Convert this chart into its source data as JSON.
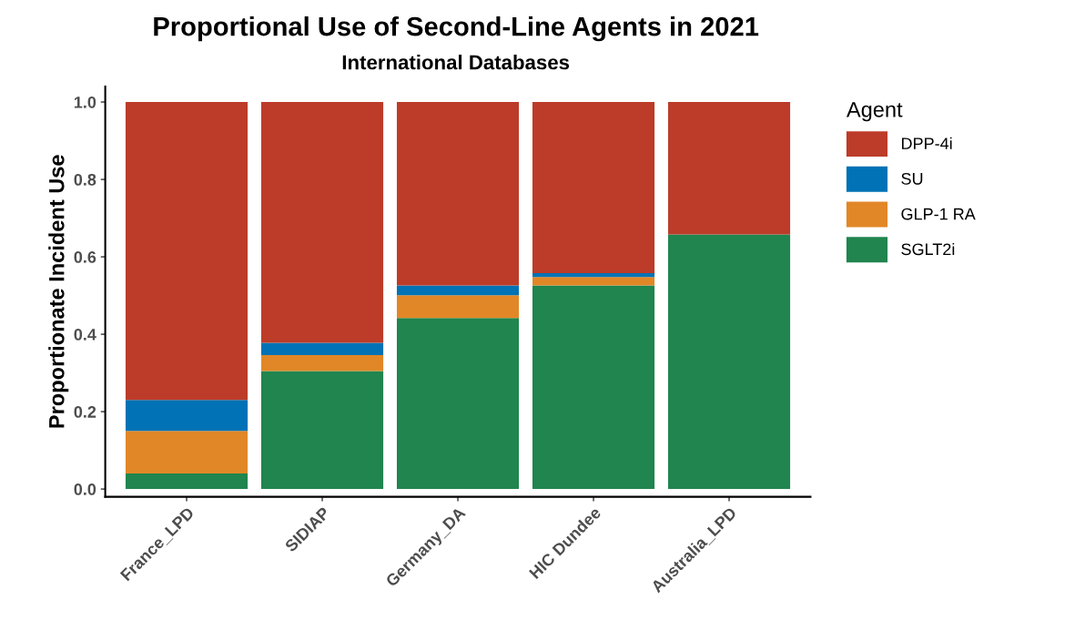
{
  "chart_data": {
    "type": "bar",
    "title": "Proportional Use of Second-Line Agents in 2021",
    "subtitle": "International Databases",
    "ylabel": "Proportionate Incident Use",
    "legend_title": "Agent",
    "categories": [
      "France_LPD",
      "SIDIAP",
      "Germany_DA",
      "HIC Dundee",
      "Australia_LPD"
    ],
    "stacked": true,
    "legend": "right",
    "grid": false,
    "ylim": [
      -0.02,
      1.04
    ],
    "yticks": [
      {
        "value": 0,
        "label": "0.0"
      },
      0.2,
      0.4,
      0.6,
      0.8,
      {
        "value": 1,
        "label": "1.0"
      }
    ],
    "series": [
      {
        "name": "SGLT2i",
        "color": "#20854e",
        "values": [
          0.04,
          0.305,
          0.442,
          0.526,
          0.658
        ]
      },
      {
        "name": "GLP-1 RA",
        "color": "#e18727",
        "values": [
          0.11,
          0.041,
          0.059,
          0.022,
          0
        ]
      },
      {
        "name": "SU",
        "color": "#0072b5",
        "values": [
          0.08,
          0.032,
          0.025,
          0.01,
          0
        ]
      },
      {
        "name": "DPP-4i",
        "color": "#bc3c29",
        "values": [
          0.77,
          0.622,
          0.474,
          0.442,
          0.342
        ]
      }
    ]
  }
}
